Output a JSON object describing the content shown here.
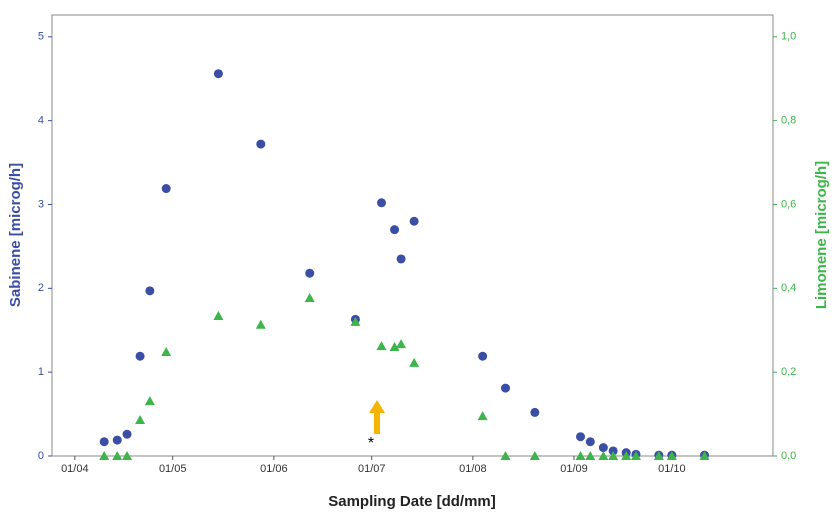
{
  "chart_data": {
    "type": "scatter",
    "x_label": "Sampling Date [dd/mm]",
    "y_label": "Sabinene [microg/h]",
    "y2_label": "Limonene [microg/h]",
    "annotation": "*",
    "x": [
      100,
      104,
      107,
      111,
      114,
      119,
      135,
      148,
      163,
      177,
      185,
      189,
      191,
      195,
      216,
      223,
      232,
      246,
      249,
      253,
      256,
      260,
      263,
      270,
      274,
      284
    ],
    "xlim": [
      84,
      305
    ],
    "xticks": [
      {
        "value": 91,
        "label": "01/04"
      },
      {
        "value": 121,
        "label": "01/05"
      },
      {
        "value": 152,
        "label": "01/06"
      },
      {
        "value": 182,
        "label": "01/07"
      },
      {
        "value": 213,
        "label": "01/08"
      },
      {
        "value": 244,
        "label": "01/09"
      },
      {
        "value": 274,
        "label": "01/10"
      }
    ],
    "ylim": [
      0,
      5.26
    ],
    "yticks": [
      0,
      1,
      2,
      3,
      4,
      5
    ],
    "y2lim": [
      0,
      1.052
    ],
    "y2ticks": [
      {
        "value": 0,
        "label": "0,0"
      },
      {
        "value": 0.2,
        "label": "0,2"
      },
      {
        "value": 0.4,
        "label": "0,4"
      },
      {
        "value": 0.6,
        "label": "0,6"
      },
      {
        "value": 0.8,
        "label": "0,8"
      },
      {
        "value": 1.0,
        "label": "1,0"
      }
    ],
    "series": [
      {
        "name": "Sabinene",
        "color": "#3a4ea6",
        "marker": "circle",
        "axis": "y",
        "values": [
          0.17,
          0.19,
          0.26,
          1.19,
          1.97,
          3.19,
          4.56,
          3.72,
          2.18,
          1.63,
          3.02,
          2.7,
          2.35,
          2.8,
          1.19,
          0.81,
          0.52,
          0.23,
          0.17,
          0.1,
          0.06,
          0.04,
          0.02,
          0.01,
          0.01,
          0.01
        ]
      },
      {
        "name": "Limonene",
        "color": "#3db54a",
        "marker": "triangle",
        "axis": "y2",
        "values": [
          0,
          0,
          0,
          0.086,
          0.131,
          0.248,
          0.334,
          0.313,
          0.377,
          0.32,
          0.262,
          0.26,
          0.267,
          0.222,
          0.095,
          0,
          0,
          0,
          0,
          0,
          0,
          0,
          0,
          0,
          0,
          0
        ]
      }
    ]
  }
}
